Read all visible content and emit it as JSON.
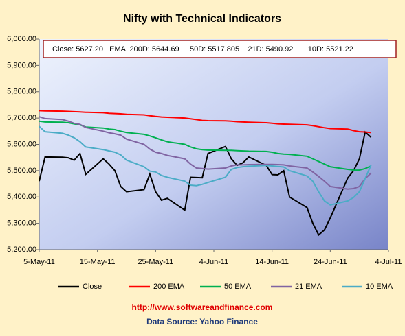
{
  "chart_data": {
    "type": "line",
    "title": "Nifty with Technical Indicators",
    "annotation": "Close: 5627.20   EMA  200D: 5644.69     50D: 5517.805    21D: 5490.92       10D: 5521.22",
    "footer": "http://www.softwareandfinance.com",
    "source": "Data Source: Yahoo Finance",
    "x": [
      "2011-05-05",
      "2011-05-06",
      "2011-05-09",
      "2011-05-10",
      "2011-05-11",
      "2011-05-12",
      "2011-05-13",
      "2011-05-16",
      "2011-05-17",
      "2011-05-18",
      "2011-05-19",
      "2011-05-20",
      "2011-05-23",
      "2011-05-24",
      "2011-05-25",
      "2011-05-26",
      "2011-05-27",
      "2011-05-30",
      "2011-05-31",
      "2011-06-01",
      "2011-06-02",
      "2011-06-03",
      "2011-06-06",
      "2011-06-07",
      "2011-06-08",
      "2011-06-09",
      "2011-06-10",
      "2011-06-13",
      "2011-06-14",
      "2011-06-15",
      "2011-06-16",
      "2011-06-17",
      "2011-06-20",
      "2011-06-21",
      "2011-06-22",
      "2011-06-23",
      "2011-06-24",
      "2011-06-27",
      "2011-06-28",
      "2011-06-29",
      "2011-06-30",
      "2011-07-01"
    ],
    "series": [
      {
        "name": "Close",
        "color": "#000000",
        "values": [
          5460,
          5552,
          5551,
          5549,
          5540,
          5565,
          5486,
          5545,
          5525,
          5500,
          5440,
          5420,
          5428,
          5487,
          5420,
          5388,
          5395,
          5350,
          5475,
          5474,
          5473,
          5565,
          5592,
          5545,
          5520,
          5530,
          5552,
          5520,
          5485,
          5484,
          5500,
          5400,
          5360,
          5300,
          5256,
          5275,
          5320,
          5472,
          5500,
          5545,
          5647,
          5627.2
        ]
      },
      {
        "name": "200 EMA",
        "color": "#ff0000",
        "values": [
          5728,
          5727,
          5726,
          5725,
          5724,
          5723,
          5722,
          5720,
          5718,
          5717,
          5716,
          5714,
          5712,
          5709,
          5706,
          5704,
          5703,
          5700,
          5697,
          5694,
          5691,
          5690,
          5689,
          5688,
          5686,
          5685,
          5684,
          5682,
          5680,
          5678,
          5677,
          5676,
          5674,
          5671,
          5667,
          5663,
          5660,
          5658,
          5652,
          5648,
          5647,
          5644.69
        ]
      },
      {
        "name": "50 EMA",
        "color": "#00b050",
        "values": [
          5688,
          5685,
          5684,
          5682,
          5678,
          5674,
          5666,
          5662,
          5658,
          5656,
          5650,
          5645,
          5638,
          5632,
          5625,
          5617,
          5610,
          5600,
          5590,
          5583,
          5580,
          5578,
          5577,
          5577,
          5576,
          5575,
          5574,
          5573,
          5570,
          5565,
          5563,
          5562,
          5555,
          5545,
          5535,
          5525,
          5515,
          5505,
          5502,
          5502,
          5508,
          5517.805
        ]
      },
      {
        "name": "21 EMA",
        "color": "#8064a2",
        "values": [
          5705,
          5698,
          5694,
          5688,
          5680,
          5676,
          5664,
          5650,
          5644,
          5640,
          5635,
          5620,
          5600,
          5582,
          5570,
          5565,
          5558,
          5545,
          5525,
          5510,
          5508,
          5506,
          5510,
          5518,
          5522,
          5522,
          5523,
          5524,
          5524,
          5523,
          5522,
          5518,
          5510,
          5495,
          5478,
          5460,
          5440,
          5430,
          5432,
          5440,
          5470,
          5490.92
        ]
      },
      {
        "name": "10 EMA",
        "color": "#4bacc6",
        "values": [
          5668,
          5648,
          5642,
          5635,
          5625,
          5610,
          5590,
          5580,
          5575,
          5570,
          5560,
          5540,
          5515,
          5498,
          5495,
          5482,
          5475,
          5460,
          5445,
          5443,
          5448,
          5455,
          5475,
          5505,
          5512,
          5515,
          5517,
          5520,
          5518,
          5516,
          5514,
          5500,
          5480,
          5460,
          5420,
          5385,
          5370,
          5385,
          5398,
          5420,
          5470,
          5521.22
        ]
      }
    ],
    "xlim": [
      "2011-05-05",
      "2011-07-04"
    ],
    "xticks": [
      {
        "value": "2011-05-05",
        "label": "5-May-11"
      },
      {
        "value": "2011-05-15",
        "label": "15-May-11"
      },
      {
        "value": "2011-05-25",
        "label": "25-May-11"
      },
      {
        "value": "2011-06-04",
        "label": "4-Jun-11"
      },
      {
        "value": "2011-06-14",
        "label": "14-Jun-11"
      },
      {
        "value": "2011-06-24",
        "label": "24-Jun-11"
      },
      {
        "value": "2011-07-04",
        "label": "4-Jul-11"
      }
    ],
    "ylim": [
      5200,
      6000
    ],
    "yticks": [
      {
        "value": 5200,
        "label": "5,200.00"
      },
      {
        "value": 5300,
        "label": "5,300.00"
      },
      {
        "value": 5400,
        "label": "5,400.00"
      },
      {
        "value": 5500,
        "label": "5,500.00"
      },
      {
        "value": 5600,
        "label": "5,600.00"
      },
      {
        "value": 5700,
        "label": "5,700.00"
      },
      {
        "value": 5800,
        "label": "5,800.00"
      },
      {
        "value": 5900,
        "label": "5,900.00"
      },
      {
        "value": 6000,
        "label": "6,000.00"
      }
    ],
    "legend": "bottom"
  }
}
